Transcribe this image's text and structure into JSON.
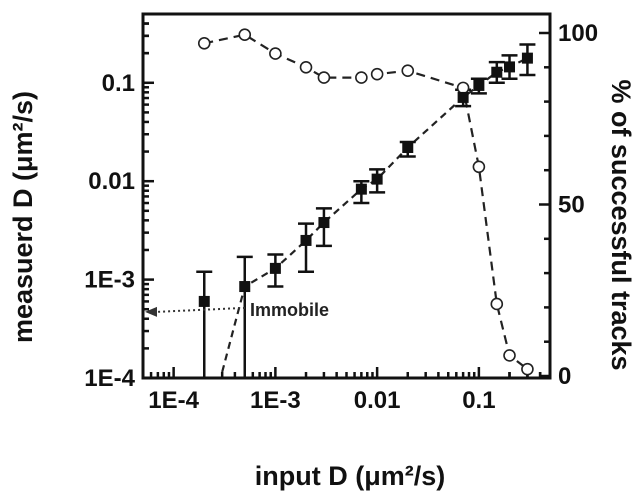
{
  "chart_data": {
    "type": "scatter",
    "xlabel": "input D (μm²/s)",
    "ylabel_left": "measuerd D (μm²/s)",
    "ylabel_right": "% of successful tracks",
    "x_scale": "log",
    "y_left_scale": "log",
    "y_right_scale": "linear",
    "xlim": [
      5e-05,
      0.5
    ],
    "ylim_left": [
      0.0001,
      0.5
    ],
    "ylim_right": [
      0,
      100
    ],
    "x_ticks": [
      0.0001,
      0.001,
      0.01,
      0.1
    ],
    "x_tick_labels": [
      "1E-4",
      "1E-3",
      "0.01",
      "0.1"
    ],
    "y_left_ticks": [
      0.0001,
      0.001,
      0.01,
      0.1
    ],
    "y_left_tick_labels": [
      "1E-4",
      "1E-3",
      "0.01",
      "0.1"
    ],
    "y_right_ticks": [
      0,
      50,
      100
    ],
    "y_right_tick_labels": [
      "0",
      "50",
      "100"
    ],
    "grid": false,
    "series": [
      {
        "marker": "filled-square",
        "axis": "left",
        "line": "dashed",
        "x": [
          0.0002,
          0.0005,
          0.001,
          0.002,
          0.003,
          0.007,
          0.01,
          0.02,
          0.07,
          0.1,
          0.15,
          0.2,
          0.3
        ],
        "y": [
          0.0006,
          0.00085,
          0.0013,
          0.0025,
          0.0038,
          0.0083,
          0.0105,
          0.022,
          0.071,
          0.094,
          0.128,
          0.145,
          0.178
        ],
        "err_low": [
          0.0001,
          0.0001,
          0.00085,
          0.0012,
          0.0022,
          0.006,
          0.0077,
          0.0178,
          0.058,
          0.078,
          0.1,
          0.11,
          0.12
        ],
        "err_high": [
          0.0012,
          0.0017,
          0.0018,
          0.0037,
          0.0053,
          0.01,
          0.0132,
          0.025,
          0.085,
          0.11,
          0.162,
          0.19,
          0.245
        ]
      },
      {
        "marker": "open-circle",
        "axis": "right",
        "line": "dashed",
        "x": [
          0.0002,
          0.0005,
          0.001,
          0.002,
          0.003,
          0.007,
          0.01,
          0.02,
          0.07,
          0.1,
          0.15,
          0.2,
          0.3
        ],
        "y": [
          97,
          99.5,
          94,
          90,
          87,
          87,
          88,
          89,
          84,
          61,
          21,
          6,
          2
        ]
      }
    ],
    "annotations": [
      {
        "text": "Immobile",
        "arrow": "dotted-left",
        "target_y": 0.00047
      }
    ]
  }
}
